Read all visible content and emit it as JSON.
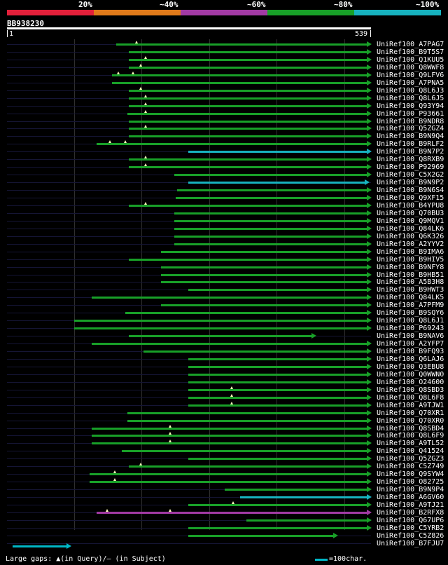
{
  "legend": {
    "labels": [
      "20%",
      "~40%",
      "~60%",
      "~80%",
      "~100%"
    ],
    "bands": [
      {
        "name": "red",
        "color": "#e3203a"
      },
      {
        "name": "orange",
        "color": "#e07a1a"
      },
      {
        "name": "purple",
        "color": "#a23aa4"
      },
      {
        "name": "green",
        "color": "#18a028"
      },
      {
        "name": "cyan",
        "color": "#17b2bf"
      }
    ]
  },
  "query": {
    "name": "BB938230",
    "start": "1",
    "end": "539",
    "length": 539
  },
  "colors": {
    "green": "#18a028",
    "cyan": "#17b2bf",
    "purple": "#a23aa4",
    "gap": "#ffffbb"
  },
  "hits": [
    {
      "name": "UniRef100_A7PAG7",
      "start": 162,
      "end": 539,
      "color": "green",
      "gaps": [
        192
      ]
    },
    {
      "name": "UniRef100_B9T5S7",
      "start": 180,
      "end": 539,
      "color": "green",
      "gaps": []
    },
    {
      "name": "UniRef100_Q1KUU5",
      "start": 180,
      "end": 539,
      "color": "green",
      "gaps": [
        205
      ]
    },
    {
      "name": "UniRef100_Q8WWF8",
      "start": 180,
      "end": 539,
      "color": "green",
      "gaps": [
        198
      ]
    },
    {
      "name": "UniRef100_Q9LFV6",
      "start": 155,
      "end": 539,
      "color": "green",
      "gaps": [
        165,
        187
      ]
    },
    {
      "name": "UniRef100_A7PNA5",
      "start": 155,
      "end": 539,
      "color": "green",
      "gaps": []
    },
    {
      "name": "UniRef100_Q8L6J3",
      "start": 180,
      "end": 539,
      "color": "green",
      "gaps": [
        198
      ]
    },
    {
      "name": "UniRef100_Q8L6J5",
      "start": 180,
      "end": 539,
      "color": "green",
      "gaps": [
        205
      ]
    },
    {
      "name": "UniRef100_Q93Y94",
      "start": 180,
      "end": 539,
      "color": "green",
      "gaps": [
        205
      ]
    },
    {
      "name": "UniRef100_P93661",
      "start": 178,
      "end": 539,
      "color": "green",
      "gaps": [
        205
      ]
    },
    {
      "name": "UniRef100_B9NDR8",
      "start": 180,
      "end": 539,
      "color": "green",
      "gaps": []
    },
    {
      "name": "UniRef100_Q5ZGZ4",
      "start": 180,
      "end": 539,
      "color": "green",
      "gaps": [
        205
      ]
    },
    {
      "name": "UniRef100_B9N9Q4",
      "start": 180,
      "end": 539,
      "color": "green",
      "gaps": []
    },
    {
      "name": "UniRef100_B9RLF2",
      "start": 133,
      "end": 539,
      "color": "green",
      "gaps": [
        152,
        175
      ]
    },
    {
      "name": "UniRef100_B9N7P2",
      "start": 268,
      "end": 539,
      "color": "cyan",
      "gaps": []
    },
    {
      "name": "UniRef100_Q8RXB9",
      "start": 180,
      "end": 539,
      "color": "green",
      "gaps": [
        205
      ]
    },
    {
      "name": "UniRef100_P92969",
      "start": 180,
      "end": 539,
      "color": "green",
      "gaps": [
        205
      ]
    },
    {
      "name": "UniRef100_C5X2G2",
      "start": 248,
      "end": 539,
      "color": "green",
      "gaps": []
    },
    {
      "name": "UniRef100_B9N9P2",
      "start": 268,
      "end": 536,
      "color": "cyan",
      "gaps": []
    },
    {
      "name": "UniRef100_B9N6S4",
      "start": 252,
      "end": 539,
      "color": "green",
      "gaps": []
    },
    {
      "name": "UniRef100_Q9XF15",
      "start": 250,
      "end": 539,
      "color": "green",
      "gaps": []
    },
    {
      "name": "UniRef100_B4YPU8",
      "start": 180,
      "end": 539,
      "color": "green",
      "gaps": [
        205
      ]
    },
    {
      "name": "UniRef100_Q70BU3",
      "start": 248,
      "end": 539,
      "color": "green",
      "gaps": []
    },
    {
      "name": "UniRef100_Q9MQV1",
      "start": 248,
      "end": 539,
      "color": "green",
      "gaps": []
    },
    {
      "name": "UniRef100_Q84LK6",
      "start": 248,
      "end": 539,
      "color": "green",
      "gaps": []
    },
    {
      "name": "UniRef100_Q6K326",
      "start": 248,
      "end": 539,
      "color": "green",
      "gaps": []
    },
    {
      "name": "UniRef100_A2YYV2",
      "start": 248,
      "end": 539,
      "color": "green",
      "gaps": []
    },
    {
      "name": "UniRef100_B9IMA6",
      "start": 228,
      "end": 539,
      "color": "green",
      "gaps": []
    },
    {
      "name": "UniRef100_B9HIV5",
      "start": 180,
      "end": 539,
      "color": "green",
      "gaps": []
    },
    {
      "name": "UniRef100_B9NFY8",
      "start": 228,
      "end": 539,
      "color": "green",
      "gaps": []
    },
    {
      "name": "UniRef100_B9HB51",
      "start": 228,
      "end": 539,
      "color": "green",
      "gaps": []
    },
    {
      "name": "UniRef100_A5B3H8",
      "start": 228,
      "end": 539,
      "color": "green",
      "gaps": []
    },
    {
      "name": "UniRef100_B9HWT3",
      "start": 268,
      "end": 539,
      "color": "green",
      "gaps": []
    },
    {
      "name": "UniRef100_Q84LK5",
      "start": 125,
      "end": 539,
      "color": "green",
      "gaps": []
    },
    {
      "name": "UniRef100_A7PFM9",
      "start": 228,
      "end": 539,
      "color": "green",
      "gaps": []
    },
    {
      "name": "UniRef100_B9SQY6",
      "start": 175,
      "end": 539,
      "color": "green",
      "gaps": []
    },
    {
      "name": "UniRef100_Q8L6J1",
      "start": 100,
      "end": 539,
      "color": "green",
      "gaps": []
    },
    {
      "name": "UniRef100_P69243",
      "start": 100,
      "end": 539,
      "color": "green",
      "gaps": []
    },
    {
      "name": "UniRef100_B9NAV6",
      "start": 180,
      "end": 457,
      "color": "green",
      "gaps": []
    },
    {
      "name": "UniRef100_A2YFP7",
      "start": 125,
      "end": 539,
      "color": "green",
      "gaps": []
    },
    {
      "name": "UniRef100_B9FQ93",
      "start": 202,
      "end": 539,
      "color": "green",
      "gaps": []
    },
    {
      "name": "UniRef100_Q6LAJ6",
      "start": 268,
      "end": 539,
      "color": "green",
      "gaps": []
    },
    {
      "name": "UniRef100_Q3EBU8",
      "start": 268,
      "end": 539,
      "color": "green",
      "gaps": []
    },
    {
      "name": "UniRef100_Q0WWN0",
      "start": 268,
      "end": 539,
      "color": "green",
      "gaps": []
    },
    {
      "name": "UniRef100_O24600",
      "start": 268,
      "end": 539,
      "color": "green",
      "gaps": []
    },
    {
      "name": "UniRef100_Q8SBD3",
      "start": 268,
      "end": 539,
      "color": "green",
      "gaps": [
        333
      ]
    },
    {
      "name": "UniRef100_Q8L6F8",
      "start": 268,
      "end": 539,
      "color": "green",
      "gaps": [
        333
      ]
    },
    {
      "name": "UniRef100_A9TJW1",
      "start": 268,
      "end": 539,
      "color": "green",
      "gaps": [
        333
      ]
    },
    {
      "name": "UniRef100_Q70XR1",
      "start": 178,
      "end": 539,
      "color": "green",
      "gaps": []
    },
    {
      "name": "UniRef100_Q70XR0",
      "start": 178,
      "end": 539,
      "color": "green",
      "gaps": []
    },
    {
      "name": "UniRef100_Q8SBD4",
      "start": 125,
      "end": 539,
      "color": "green",
      "gaps": [
        242
      ]
    },
    {
      "name": "UniRef100_Q8L6F9",
      "start": 125,
      "end": 539,
      "color": "green",
      "gaps": [
        242
      ]
    },
    {
      "name": "UniRef100_A9TL52",
      "start": 125,
      "end": 539,
      "color": "green",
      "gaps": [
        242
      ]
    },
    {
      "name": "UniRef100_Q41524",
      "start": 170,
      "end": 539,
      "color": "green",
      "gaps": []
    },
    {
      "name": "UniRef100_Q5ZGZ3",
      "start": 268,
      "end": 539,
      "color": "green",
      "gaps": []
    },
    {
      "name": "UniRef100_C5Z749",
      "start": 180,
      "end": 539,
      "color": "green",
      "gaps": [
        198
      ]
    },
    {
      "name": "UniRef100_Q9SYW4",
      "start": 122,
      "end": 539,
      "color": "green",
      "gaps": [
        160
      ]
    },
    {
      "name": "UniRef100_O82725",
      "start": 122,
      "end": 539,
      "color": "green",
      "gaps": [
        160
      ]
    },
    {
      "name": "UniRef100_B9N9P4",
      "start": 322,
      "end": 539,
      "color": "green",
      "gaps": []
    },
    {
      "name": "UniRef100_A6GV60",
      "start": 345,
      "end": 539,
      "color": "cyan",
      "gaps": []
    },
    {
      "name": "UniRef100_A9TJ21",
      "start": 268,
      "end": 539,
      "color": "green",
      "gaps": [
        335
      ]
    },
    {
      "name": "UniRef100_B2RFX8",
      "start": 133,
      "end": 539,
      "color": "purple",
      "gaps": [
        148,
        242
      ]
    },
    {
      "name": "UniRef100_Q67UP6",
      "start": 355,
      "end": 539,
      "color": "green",
      "gaps": []
    },
    {
      "name": "UniRef100_C5YRB2",
      "start": 268,
      "end": 539,
      "color": "green",
      "gaps": []
    },
    {
      "name": "UniRef100_C5Z826",
      "start": 268,
      "end": 489,
      "color": "green",
      "gaps": []
    },
    {
      "name": "UniRef100_B7FJU7",
      "start": null,
      "end": null,
      "color": "green",
      "gaps": []
    }
  ],
  "footer": {
    "gaps_text": "Large gaps: ▲(in Query)/— (in Subject)",
    "scale_text": "=100char."
  }
}
